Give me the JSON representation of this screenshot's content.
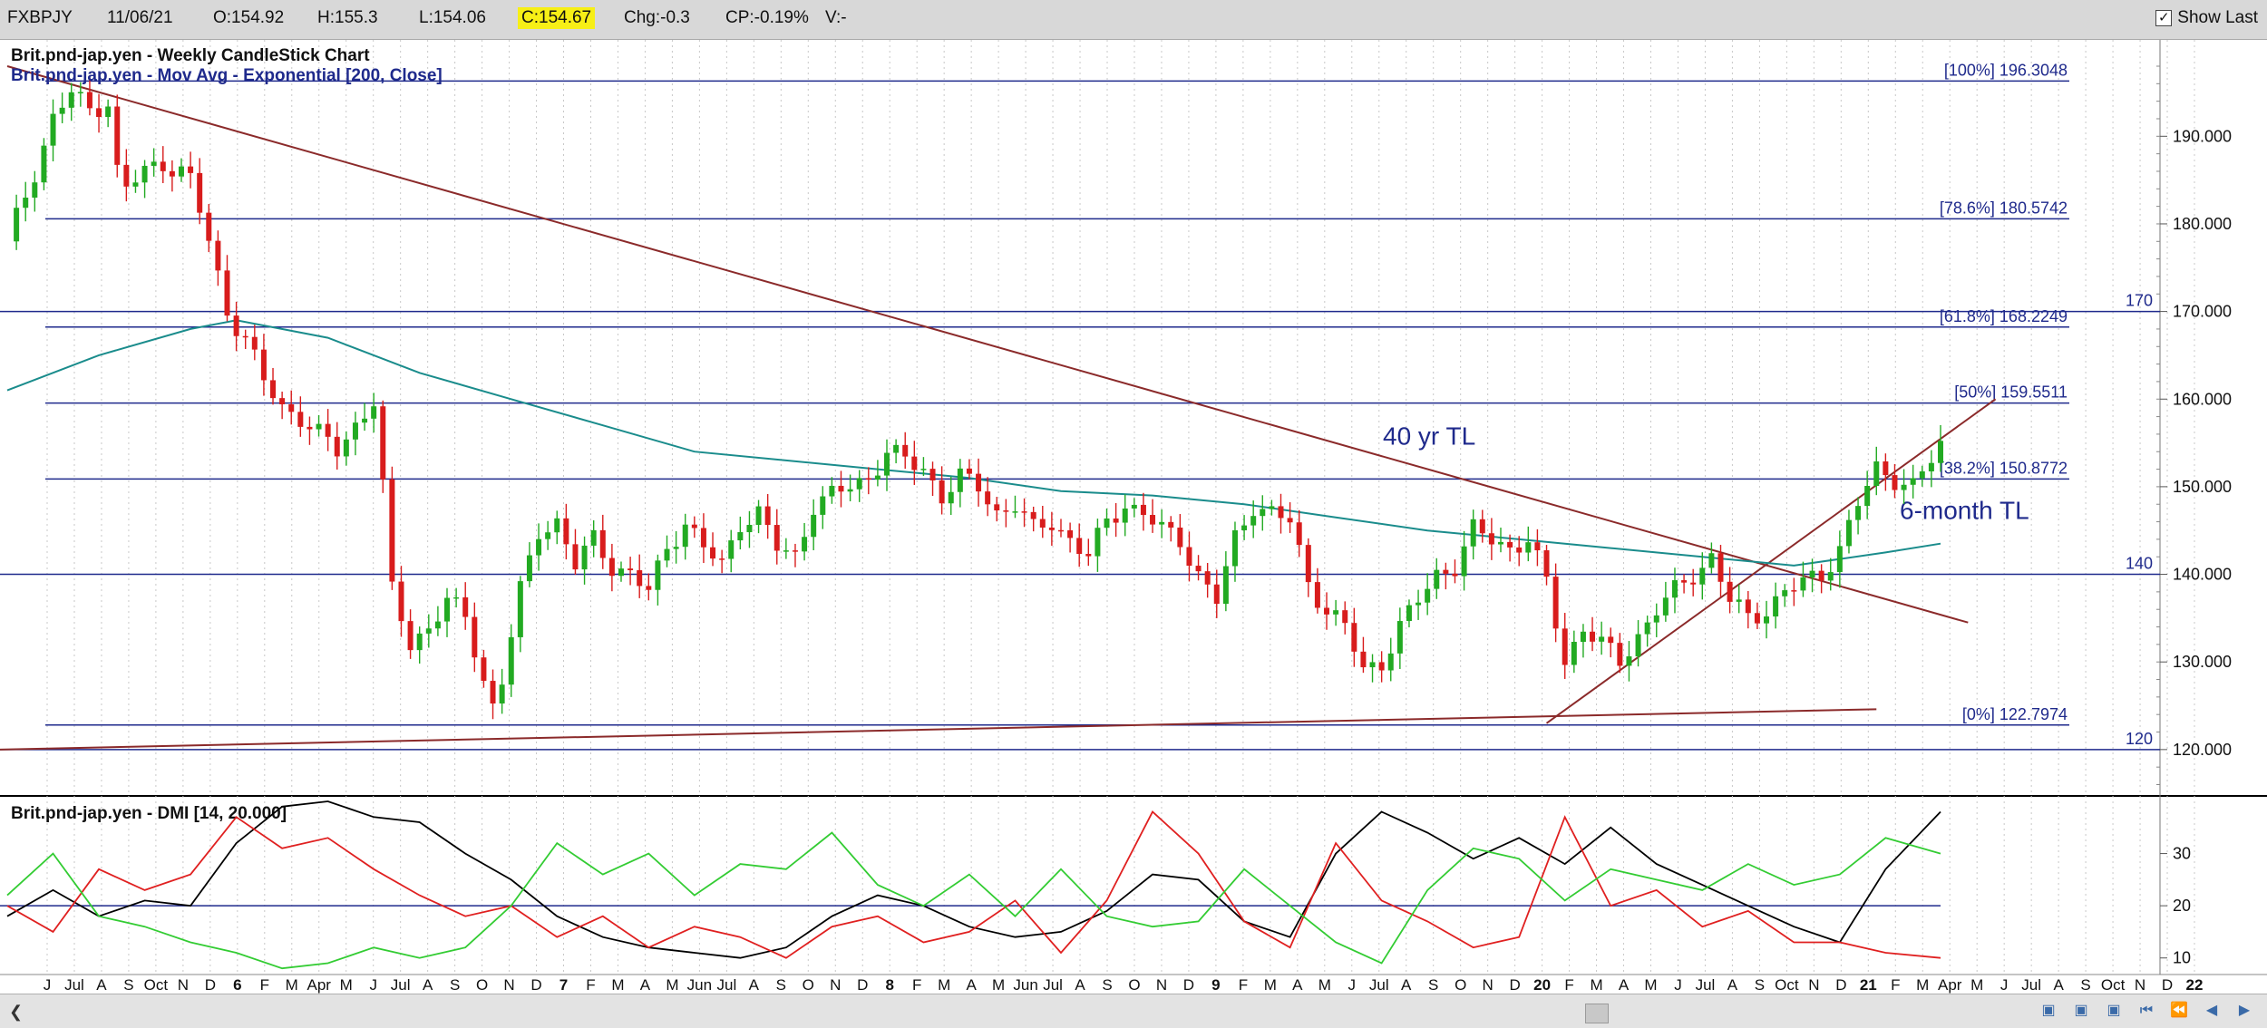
{
  "toolbar": {
    "symbol": "FXBPJY",
    "date": "11/06/21",
    "open": "O:154.92",
    "high": "H:155.3",
    "low": "L:154.06",
    "close": "C:154.67",
    "change": "Chg:-0.3",
    "change_pct": "CP:-0.19%",
    "volume": "V:-",
    "show_last_label": "Show Last",
    "show_last_checked": true
  },
  "chart_data": [
    {
      "type": "candlestick",
      "title": "Brit.pnd-jap.yen - Weekly CandleStick Chart",
      "overlay": "Brit.pnd-jap.yen - Mov Avg - Exponential [200, Close]",
      "y_ticks": [
        "190.000",
        "180.000",
        "170.000",
        "160.000",
        "150.000",
        "140.000",
        "130.000",
        "120.000"
      ],
      "ylim": [
        114.5,
        201
      ],
      "fib_levels": [
        {
          "label": "[100%] 196.3048",
          "value": 196.3048
        },
        {
          "label": "[78.6%] 180.5742",
          "value": 180.5742
        },
        {
          "label": "[61.8%] 168.2249",
          "value": 168.2249
        },
        {
          "label": "[50%] 159.5511",
          "value": 159.5511
        },
        {
          "label": "[38.2%] 150.8772",
          "value": 150.8772
        },
        {
          "label": "[0%] 122.7974",
          "value": 122.7974
        }
      ],
      "horizontal_lines": [
        {
          "label": "170",
          "value": 170
        },
        {
          "label": "140",
          "value": 140
        },
        {
          "label": "120",
          "value": 120
        }
      ],
      "annotations": [
        "40 yr TL",
        "6-month TL"
      ],
      "x_labels": [
        "J",
        "Jul",
        "A",
        "S",
        "Oct",
        "N",
        "D",
        "6",
        "F",
        "M",
        "Apr",
        "M",
        "J",
        "Jul",
        "A",
        "S",
        "O",
        "N",
        "D",
        "7",
        "F",
        "M",
        "A",
        "M",
        "Jun",
        "Jul",
        "A",
        "S",
        "O",
        "N",
        "D",
        "8",
        "F",
        "M",
        "A",
        "M",
        "Jun",
        "Jul",
        "A",
        "S",
        "O",
        "N",
        "D",
        "9",
        "F",
        "M",
        "A",
        "M",
        "J",
        "Jul",
        "A",
        "S",
        "O",
        "N",
        "D",
        "20",
        "F",
        "M",
        "A",
        "M",
        "J",
        "Jul",
        "A",
        "S",
        "Oct",
        "N",
        "D",
        "21",
        "F",
        "M",
        "Apr",
        "M",
        "J",
        "Jul",
        "A",
        "S",
        "Oct",
        "N",
        "D",
        "22"
      ],
      "close_path": [
        [
          0,
          178
        ],
        [
          3,
          186
        ],
        [
          5,
          192
        ],
        [
          7,
          195
        ],
        [
          9,
          193
        ],
        [
          11,
          194
        ],
        [
          12,
          186
        ],
        [
          13,
          184
        ],
        [
          15,
          186
        ],
        [
          17,
          187
        ],
        [
          19,
          186
        ],
        [
          20,
          185
        ],
        [
          22,
          178
        ],
        [
          24,
          170
        ],
        [
          26,
          167
        ],
        [
          28,
          162
        ],
        [
          30,
          159
        ],
        [
          32,
          158
        ],
        [
          34,
          156
        ],
        [
          36,
          154
        ],
        [
          38,
          157
        ],
        [
          40,
          160
        ],
        [
          41,
          150
        ],
        [
          42,
          138
        ],
        [
          44,
          132
        ],
        [
          46,
          134
        ],
        [
          48,
          137
        ],
        [
          50,
          135
        ],
        [
          52,
          128
        ],
        [
          53,
          125
        ],
        [
          54,
          128
        ],
        [
          56,
          138
        ],
        [
          58,
          145
        ],
        [
          60,
          146
        ],
        [
          62,
          141
        ],
        [
          64,
          144
        ],
        [
          66,
          141
        ],
        [
          68,
          140
        ],
        [
          70,
          138
        ],
        [
          72,
          143
        ],
        [
          74,
          146
        ],
        [
          76,
          143
        ],
        [
          78,
          141
        ],
        [
          80,
          146
        ],
        [
          82,
          147
        ],
        [
          84,
          143
        ],
        [
          86,
          142
        ],
        [
          88,
          148
        ],
        [
          90,
          149
        ],
        [
          92,
          150
        ],
        [
          94,
          151
        ],
        [
          96,
          154
        ],
        [
          98,
          153
        ],
        [
          100,
          152
        ],
        [
          102,
          149
        ],
        [
          104,
          151
        ],
        [
          106,
          150
        ],
        [
          108,
          147
        ],
        [
          110,
          148
        ],
        [
          112,
          145
        ],
        [
          114,
          146
        ],
        [
          116,
          144
        ],
        [
          118,
          142
        ],
        [
          120,
          146
        ],
        [
          122,
          148
        ],
        [
          124,
          147
        ],
        [
          126,
          145
        ],
        [
          128,
          144
        ],
        [
          130,
          140
        ],
        [
          132,
          137
        ],
        [
          134,
          144
        ],
        [
          136,
          148
        ],
        [
          138,
          147
        ],
        [
          140,
          146
        ],
        [
          142,
          139
        ],
        [
          144,
          136
        ],
        [
          146,
          134
        ],
        [
          148,
          129
        ],
        [
          150,
          130
        ],
        [
          152,
          134
        ],
        [
          154,
          137
        ],
        [
          156,
          140
        ],
        [
          158,
          141
        ],
        [
          160,
          145
        ],
        [
          162,
          144
        ],
        [
          164,
          143
        ],
        [
          166,
          144
        ],
        [
          168,
          139
        ],
        [
          170,
          130
        ],
        [
          172,
          134
        ],
        [
          174,
          132
        ],
        [
          176,
          130
        ],
        [
          178,
          133
        ],
        [
          180,
          136
        ],
        [
          182,
          138
        ],
        [
          184,
          140
        ],
        [
          186,
          142
        ],
        [
          188,
          137
        ],
        [
          190,
          135
        ],
        [
          192,
          136
        ],
        [
          194,
          138
        ],
        [
          196,
          139
        ],
        [
          198,
          140
        ],
        [
          200,
          143
        ],
        [
          202,
          148
        ],
        [
          204,
          152
        ],
        [
          206,
          151
        ],
        [
          208,
          150
        ],
        [
          210,
          153
        ],
        [
          211,
          154.7
        ]
      ],
      "ema200": [
        [
          0,
          161
        ],
        [
          10,
          165
        ],
        [
          20,
          168
        ],
        [
          25,
          169
        ],
        [
          35,
          167
        ],
        [
          45,
          163
        ],
        [
          55,
          160
        ],
        [
          65,
          157
        ],
        [
          75,
          154
        ],
        [
          85,
          153
        ],
        [
          95,
          152
        ],
        [
          105,
          151
        ],
        [
          115,
          149.5
        ],
        [
          125,
          149
        ],
        [
          135,
          148
        ],
        [
          145,
          146.5
        ],
        [
          155,
          145
        ],
        [
          165,
          144
        ],
        [
          175,
          143
        ],
        [
          185,
          142
        ],
        [
          195,
          141
        ],
        [
          205,
          142.5
        ],
        [
          211,
          143.5
        ]
      ]
    },
    {
      "type": "line",
      "title": "Brit.pnd-jap.yen - DMI [14, 20.000]",
      "y_ticks": [
        "30",
        "20",
        "10"
      ],
      "ylim": [
        7,
        40
      ],
      "reference_line": 20,
      "series": [
        {
          "color": "#000000",
          "values": [
            [
              0,
              18
            ],
            [
              5,
              23
            ],
            [
              10,
              18
            ],
            [
              15,
              21
            ],
            [
              20,
              20
            ],
            [
              25,
              32
            ],
            [
              30,
              39
            ],
            [
              35,
              40
            ],
            [
              40,
              37
            ],
            [
              45,
              36
            ],
            [
              50,
              30
            ],
            [
              55,
              25
            ],
            [
              60,
              18
            ],
            [
              65,
              14
            ],
            [
              70,
              12
            ],
            [
              75,
              11
            ],
            [
              80,
              10
            ],
            [
              85,
              12
            ],
            [
              90,
              18
            ],
            [
              95,
              22
            ],
            [
              100,
              20
            ],
            [
              105,
              16
            ],
            [
              110,
              14
            ],
            [
              115,
              15
            ],
            [
              120,
              19
            ],
            [
              125,
              26
            ],
            [
              130,
              25
            ],
            [
              135,
              17
            ],
            [
              140,
              14
            ],
            [
              145,
              30
            ],
            [
              150,
              38
            ],
            [
              155,
              34
            ],
            [
              160,
              29
            ],
            [
              165,
              33
            ],
            [
              170,
              28
            ],
            [
              175,
              35
            ],
            [
              180,
              28
            ],
            [
              185,
              24
            ],
            [
              190,
              20
            ],
            [
              195,
              16
            ],
            [
              200,
              13
            ],
            [
              205,
              27
            ],
            [
              211,
              38
            ]
          ]
        },
        {
          "color": "#e02020",
          "values": [
            [
              0,
              20
            ],
            [
              5,
              15
            ],
            [
              10,
              27
            ],
            [
              15,
              23
            ],
            [
              20,
              26
            ],
            [
              25,
              37
            ],
            [
              30,
              31
            ],
            [
              35,
              33
            ],
            [
              40,
              27
            ],
            [
              45,
              22
            ],
            [
              50,
              18
            ],
            [
              55,
              20
            ],
            [
              60,
              14
            ],
            [
              65,
              18
            ],
            [
              70,
              12
            ],
            [
              75,
              16
            ],
            [
              80,
              14
            ],
            [
              85,
              10
            ],
            [
              90,
              16
            ],
            [
              95,
              18
            ],
            [
              100,
              13
            ],
            [
              105,
              15
            ],
            [
              110,
              21
            ],
            [
              115,
              11
            ],
            [
              120,
              21
            ],
            [
              125,
              38
            ],
            [
              130,
              30
            ],
            [
              135,
              17
            ],
            [
              140,
              12
            ],
            [
              145,
              32
            ],
            [
              150,
              21
            ],
            [
              155,
              17
            ],
            [
              160,
              12
            ],
            [
              165,
              14
            ],
            [
              170,
              37
            ],
            [
              175,
              20
            ],
            [
              180,
              23
            ],
            [
              185,
              16
            ],
            [
              190,
              19
            ],
            [
              195,
              13
            ],
            [
              200,
              13
            ],
            [
              205,
              11
            ],
            [
              211,
              10
            ]
          ]
        },
        {
          "color": "#33cc33",
          "values": [
            [
              0,
              22
            ],
            [
              5,
              30
            ],
            [
              10,
              18
            ],
            [
              15,
              16
            ],
            [
              20,
              13
            ],
            [
              25,
              11
            ],
            [
              30,
              8
            ],
            [
              35,
              9
            ],
            [
              40,
              12
            ],
            [
              45,
              10
            ],
            [
              50,
              12
            ],
            [
              55,
              20
            ],
            [
              60,
              32
            ],
            [
              65,
              26
            ],
            [
              70,
              30
            ],
            [
              75,
              22
            ],
            [
              80,
              28
            ],
            [
              85,
              27
            ],
            [
              90,
              34
            ],
            [
              95,
              24
            ],
            [
              100,
              20
            ],
            [
              105,
              26
            ],
            [
              110,
              18
            ],
            [
              115,
              27
            ],
            [
              120,
              18
            ],
            [
              125,
              16
            ],
            [
              130,
              17
            ],
            [
              135,
              27
            ],
            [
              140,
              20
            ],
            [
              145,
              13
            ],
            [
              150,
              9
            ],
            [
              155,
              23
            ],
            [
              160,
              31
            ],
            [
              165,
              29
            ],
            [
              170,
              21
            ],
            [
              175,
              27
            ],
            [
              180,
              25
            ],
            [
              185,
              23
            ],
            [
              190,
              28
            ],
            [
              195,
              24
            ],
            [
              200,
              26
            ],
            [
              205,
              33
            ],
            [
              211,
              30
            ]
          ]
        }
      ]
    }
  ]
}
